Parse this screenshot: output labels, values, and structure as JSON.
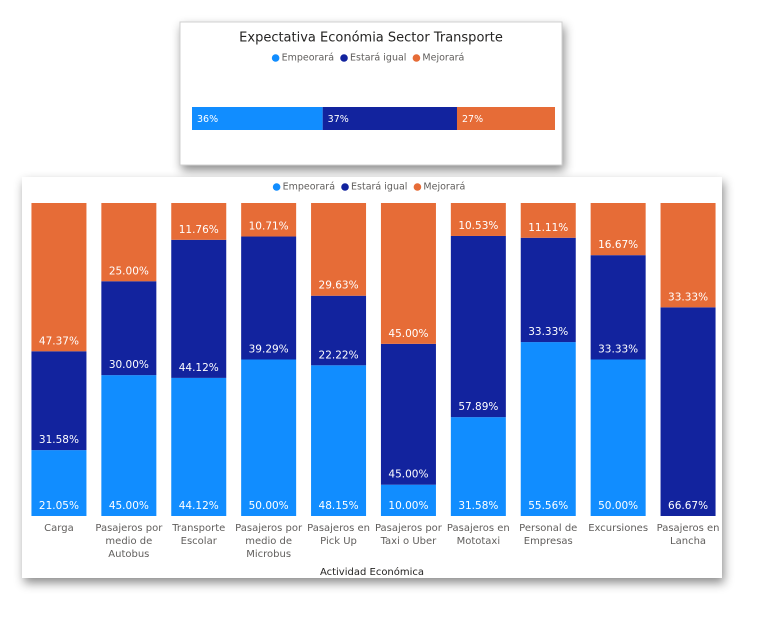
{
  "chart_data": [
    {
      "type": "bar",
      "orientation": "horizontal",
      "stacked": true,
      "title": "Expectativa Económia Sector Transporte",
      "categories": [
        null
      ],
      "series": [
        {
          "name": "Empeorará",
          "color": "#118dff",
          "values": [
            36
          ],
          "value_labels": [
            "36%"
          ]
        },
        {
          "name": "Estará igual",
          "color": "#12239e",
          "values": [
            37
          ],
          "value_labels": [
            "37%"
          ]
        },
        {
          "name": "Mejorará",
          "color": "#e66c37",
          "values": [
            27
          ],
          "value_labels": [
            "27%"
          ]
        }
      ]
    },
    {
      "type": "bar",
      "orientation": "vertical",
      "stacked": true,
      "x_label": "Actividad Económica",
      "categories": [
        "Carga",
        "Pasajeros por medio de Autobus",
        "Transporte Escolar",
        "Pasajeros por medio de Microbus",
        "Pasajeros en Pick Up",
        "Pasajeros por Taxi o Uber",
        "Pasajeros en Mototaxi",
        "Personal de Empresas",
        "Excursiones",
        "Pasajeros en Lancha"
      ],
      "series": [
        {
          "name": "Empeorará",
          "color": "#118dff",
          "values": [
            21.05,
            45,
            44.12,
            50,
            48.15,
            10,
            31.58,
            55.56,
            50,
            null
          ],
          "value_labels": [
            "21.05%",
            "45.00%",
            "44.12%",
            "50.00%",
            "48.15%",
            "10.00%",
            "31.58%",
            "55.56%",
            "50.00%",
            null
          ]
        },
        {
          "name": "Estará igual",
          "color": "#12239e",
          "values": [
            31.58,
            30,
            44.12,
            39.29,
            22.22,
            45,
            57.89,
            33.33,
            33.33,
            66.67
          ],
          "value_labels": [
            "31.58%",
            "30.00%",
            "44.12%",
            "39.29%",
            "22.22%",
            "45.00%",
            "57.89%",
            "33.33%",
            "33.33%",
            "66.67%"
          ]
        },
        {
          "name": "Mejorará",
          "color": "#e66c37",
          "values": [
            47.37,
            25,
            11.76,
            10.71,
            29.63,
            45,
            10.53,
            11.11,
            16.67,
            33.33
          ],
          "value_labels": [
            "47.37%",
            "25.00%",
            "11.76%",
            "10.71%",
            "29.63%",
            "45.00%",
            "10.53%",
            "11.11%",
            "16.67%",
            "33.33%"
          ]
        }
      ]
    }
  ]
}
